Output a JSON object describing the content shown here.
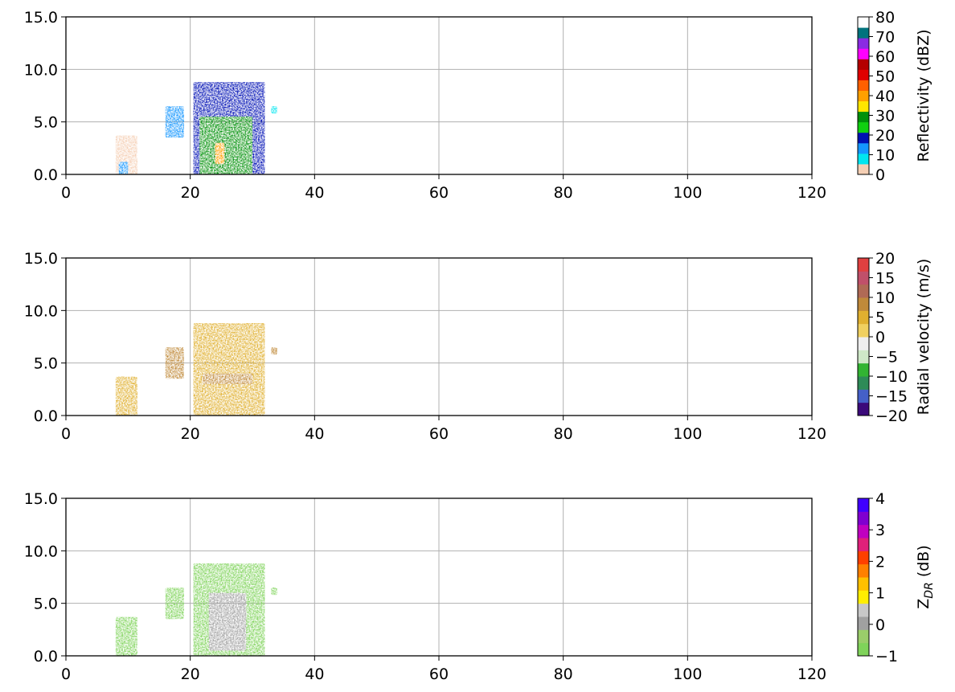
{
  "chart_data": [
    {
      "type": "heatmap",
      "id": "reflectivity",
      "title": "",
      "xlabel": "",
      "ylabel": "",
      "xlim": [
        0,
        120
      ],
      "ylim": [
        0,
        15
      ],
      "x_ticks": [
        "0",
        "20",
        "40",
        "60",
        "80",
        "100",
        "120"
      ],
      "y_ticks": [
        "0.0",
        "5.0",
        "10.0",
        "15.0"
      ],
      "grid": true,
      "colorbar": {
        "label": "Reflectivity (dBZ)",
        "range": [
          0,
          80
        ],
        "ticks": [
          "0",
          "10",
          "20",
          "30",
          "40",
          "50",
          "60",
          "70",
          "80"
        ],
        "colors": [
          "#f5cfb4",
          "#00e6f0",
          "#1496ff",
          "#0010b4",
          "#10d010",
          "#00900a",
          "#ffe600",
          "#ffa000",
          "#ff6000",
          "#e00000",
          "#b40000",
          "#ff00ff",
          "#8a2be2",
          "#00737d",
          "#ffffff"
        ]
      },
      "echoes": [
        {
          "x": [
            8,
            11.5
          ],
          "y": [
            0,
            3.7
          ],
          "value": 3
        },
        {
          "x": [
            8.5,
            10
          ],
          "y": [
            0,
            1.2
          ],
          "value": 12
        },
        {
          "x": [
            16,
            19
          ],
          "y": [
            3.5,
            6.5
          ],
          "value": 12
        },
        {
          "x": [
            20.5,
            32
          ],
          "y": [
            0,
            8.8
          ],
          "value": 20
        },
        {
          "x": [
            21.5,
            30
          ],
          "y": [
            0,
            5.5
          ],
          "value": 27
        },
        {
          "x": [
            24,
            25.5
          ],
          "y": [
            1,
            3
          ],
          "value": 38
        },
        {
          "x": [
            33,
            34
          ],
          "y": [
            5.8,
            6.5
          ],
          "value": 10
        }
      ]
    },
    {
      "type": "heatmap",
      "id": "radial_velocity",
      "title": "",
      "xlabel": "",
      "ylabel": "",
      "xlim": [
        0,
        120
      ],
      "ylim": [
        0,
        15
      ],
      "x_ticks": [
        "0",
        "20",
        "40",
        "60",
        "80",
        "100",
        "120"
      ],
      "y_ticks": [
        "0.0",
        "5.0",
        "10.0",
        "15.0"
      ],
      "grid": true,
      "colorbar": {
        "label": "Radial velocity (m/s)",
        "range": [
          -20,
          20
        ],
        "ticks": [
          "−20",
          "−15",
          "−10",
          "−5",
          "0",
          "5",
          "10",
          "15",
          "20"
        ],
        "colors": [
          "#3b0a7a",
          "#4560c8",
          "#2e8b57",
          "#32b432",
          "#cfe8c8",
          "#eeeeee",
          "#f0d060",
          "#e0b030",
          "#c08a3a",
          "#b06a55",
          "#c0506a",
          "#e04040"
        ]
      },
      "echoes": [
        {
          "x": [
            8,
            11.5
          ],
          "y": [
            0,
            3.7
          ],
          "value": 6
        },
        {
          "x": [
            16,
            19
          ],
          "y": [
            3.5,
            6.5
          ],
          "value": 7
        },
        {
          "x": [
            20.5,
            32
          ],
          "y": [
            0,
            8.8
          ],
          "value": 5
        },
        {
          "x": [
            22,
            30
          ],
          "y": [
            3,
            4
          ],
          "value": 9
        },
        {
          "x": [
            33,
            34
          ],
          "y": [
            5.8,
            6.5
          ],
          "value": 8
        }
      ]
    },
    {
      "type": "heatmap",
      "id": "zdr",
      "title": "",
      "xlabel": "",
      "ylabel": "",
      "xlim": [
        0,
        120
      ],
      "ylim": [
        0,
        15
      ],
      "x_ticks": [
        "0",
        "20",
        "40",
        "60",
        "80",
        "100",
        "120"
      ],
      "y_ticks": [
        "0.0",
        "5.0",
        "10.0",
        "15.0"
      ],
      "grid": true,
      "colorbar": {
        "label": "Z",
        "label_sub": "DR",
        "label_unit": " (dB)",
        "range": [
          -1,
          4
        ],
        "ticks": [
          "−1",
          "0",
          "1",
          "2",
          "3",
          "4"
        ],
        "colors": [
          "#7fd35a",
          "#9acd6a",
          "#a0a0a0",
          "#c8c8c8",
          "#ffee00",
          "#ffc000",
          "#ff8000",
          "#ff4000",
          "#e0207a",
          "#c000c0",
          "#8000d0",
          "#4000ff"
        ]
      },
      "echoes": [
        {
          "x": [
            8,
            11.5
          ],
          "y": [
            0,
            3.7
          ],
          "value": -0.8
        },
        {
          "x": [
            16,
            19
          ],
          "y": [
            3.5,
            6.5
          ],
          "value": -0.7
        },
        {
          "x": [
            20.5,
            32
          ],
          "y": [
            0,
            8.8
          ],
          "value": -0.7
        },
        {
          "x": [
            23,
            29
          ],
          "y": [
            0.5,
            6
          ],
          "value": -0.1
        },
        {
          "x": [
            33,
            34
          ],
          "y": [
            5.8,
            6.5
          ],
          "value": -0.7
        }
      ]
    }
  ]
}
